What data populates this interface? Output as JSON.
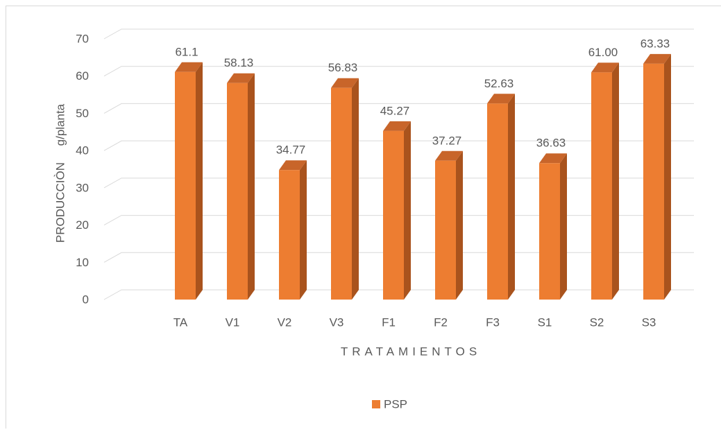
{
  "chart_data": {
    "type": "bar3d",
    "x_label": "TRATAMIENTOS",
    "y_label": "PRODUCCIÒN     g/planta",
    "categories": [
      "TA",
      "V1",
      "V2",
      "V3",
      "F1",
      "F2",
      "F3",
      "S1",
      "S2",
      "S3"
    ],
    "series": [
      {
        "name": "PSP",
        "color": "#ED7D31",
        "values": [
          61.1,
          58.13,
          34.77,
          56.83,
          45.27,
          37.27,
          52.63,
          36.63,
          61.0,
          63.33
        ],
        "value_labels": [
          "61.1",
          "58.13",
          "34.77",
          "56.83",
          "45.27",
          "37.27",
          "52.63",
          "36.63",
          "61.00",
          "63.33"
        ]
      }
    ],
    "ylim": [
      0,
      70
    ],
    "yticks": [
      0,
      10,
      20,
      30,
      40,
      50,
      60,
      70
    ],
    "grid": true,
    "legend": "bottom"
  }
}
